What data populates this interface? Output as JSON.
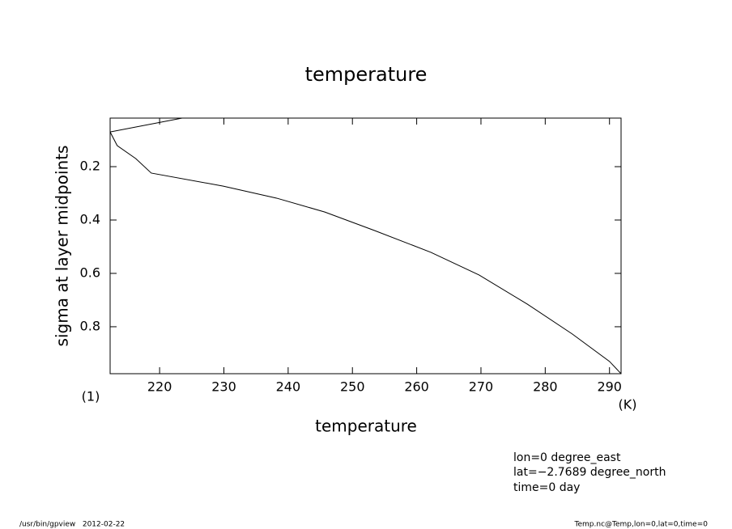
{
  "chart_data": {
    "type": "line",
    "title": "temperature",
    "x_label": "temperature",
    "y_label": "sigma at layer midpoints",
    "x_unit": "(K)",
    "y_unit": "(1)",
    "annotations": [
      "lon=0 degree_east",
      "lat=−2.7689 degree_north",
      "time=0 day"
    ],
    "footer_left": "/usr/bin/gpview   2012-02-22",
    "footer_right": "Temp.nc@Temp,lon=0,lat=0,time=0",
    "x": [
      223.5,
      212.3,
      213.4,
      216.3,
      218.7,
      229.9,
      238.2,
      245.7,
      253.4,
      262.2,
      269.7,
      277.2,
      284.2,
      290,
      291.8
    ],
    "values": [
      0.018,
      0.07,
      0.121,
      0.17,
      0.224,
      0.273,
      0.318,
      0.37,
      0.439,
      0.521,
      0.606,
      0.715,
      0.827,
      0.93,
      0.976
    ],
    "color": "#000000",
    "xlim": [
      212.3,
      291.8
    ],
    "xticks": [
      220,
      230,
      240,
      250,
      260,
      270,
      280,
      290
    ],
    "ylim": [
      0.976,
      0.018
    ],
    "yticks": [
      0.2,
      0.4,
      0.6,
      0.8
    ]
  }
}
